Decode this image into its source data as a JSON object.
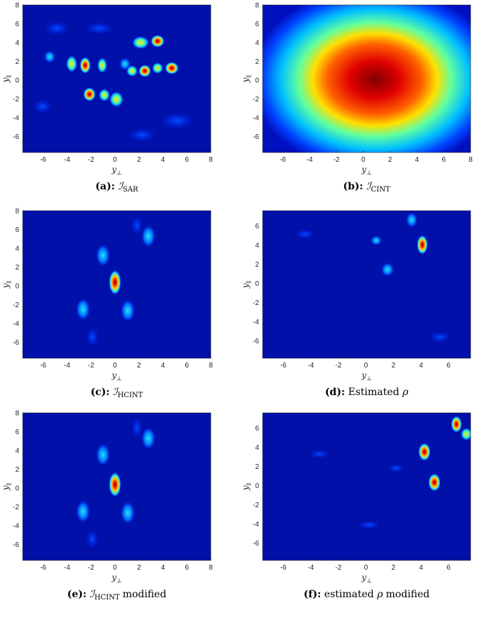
{
  "panels": [
    {
      "tag": "(a):",
      "symbol": "ℐ",
      "sub": "SAR",
      "text": null,
      "xlim": [
        -7.7,
        8
      ],
      "ylim": [
        -7.7,
        8
      ],
      "xticks": [
        -6,
        -4,
        -2,
        0,
        2,
        4,
        6,
        8
      ],
      "yticks": [
        -6,
        -4,
        -2,
        0,
        2,
        4,
        6,
        8
      ],
      "xlabel": {
        "symbol": "y",
        "sub": "⊥"
      },
      "ylabel": {
        "symbol": "y",
        "sub": "∥"
      }
    },
    {
      "tag": "(b):",
      "symbol": "ℐ",
      "sub": "CINT",
      "text": null,
      "xlim": [
        -7.5,
        8
      ],
      "ylim": [
        -7.7,
        8
      ],
      "xticks": [
        -6,
        -4,
        -2,
        0,
        2,
        4,
        6,
        8
      ],
      "yticks": [
        -6,
        -4,
        -2,
        0,
        2,
        4,
        6,
        8
      ],
      "xlabel": {
        "symbol": "y",
        "sub": "⊥"
      },
      "ylabel": {
        "symbol": "y",
        "sub": "∥"
      }
    },
    {
      "tag": "(c):",
      "symbol": "ℐ",
      "sub": "HCINT",
      "text": null,
      "xlim": [
        -7.7,
        8
      ],
      "ylim": [
        -7.7,
        8
      ],
      "xticks": [
        -6,
        -4,
        -2,
        0,
        2,
        4,
        6,
        8
      ],
      "yticks": [
        -6,
        -4,
        -2,
        0,
        2,
        4,
        6,
        8
      ],
      "xlabel": {
        "symbol": "y",
        "sub": "⊥"
      },
      "ylabel": {
        "symbol": "y",
        "sub": "∥"
      }
    },
    {
      "tag": "(d):",
      "symbol": "ρ",
      "sub": null,
      "text": "Estimated",
      "xlim": [
        -7.5,
        7.6
      ],
      "ylim": [
        -7.8,
        7.6
      ],
      "xticks": [
        -6,
        -4,
        -2,
        0,
        2,
        4,
        6
      ],
      "yticks": [
        -6,
        -4,
        -2,
        0,
        2,
        4,
        6
      ],
      "xlabel": {
        "symbol": "y",
        "sub": "⊥"
      },
      "ylabel": {
        "symbol": "y",
        "sub": "∥"
      }
    },
    {
      "tag": "(e):",
      "symbol": "ℐ",
      "sub": "HCINT",
      "text": "modified",
      "xlim": [
        -7.7,
        8
      ],
      "ylim": [
        -7.7,
        8
      ],
      "xticks": [
        -6,
        -4,
        -2,
        0,
        2,
        4,
        6,
        8
      ],
      "yticks": [
        -6,
        -4,
        -2,
        0,
        2,
        4,
        6,
        8
      ],
      "xlabel": {
        "symbol": "y",
        "sub": "⊥"
      },
      "ylabel": {
        "symbol": "y",
        "sub": "∥"
      }
    },
    {
      "tag": "(f):",
      "symbol": "ρ",
      "sub": null,
      "text": "estimated",
      "text2": "modified",
      "xlim": [
        -7.5,
        7.6
      ],
      "ylim": [
        -7.8,
        7.6
      ],
      "xticks": [
        -6,
        -4,
        -2,
        0,
        2,
        4,
        6
      ],
      "yticks": [
        -6,
        -4,
        -2,
        0,
        2,
        4,
        6
      ],
      "xlabel": {
        "symbol": "y",
        "sub": "⊥"
      },
      "ylabel": {
        "symbol": "y",
        "sub": "∥"
      }
    }
  ]
}
